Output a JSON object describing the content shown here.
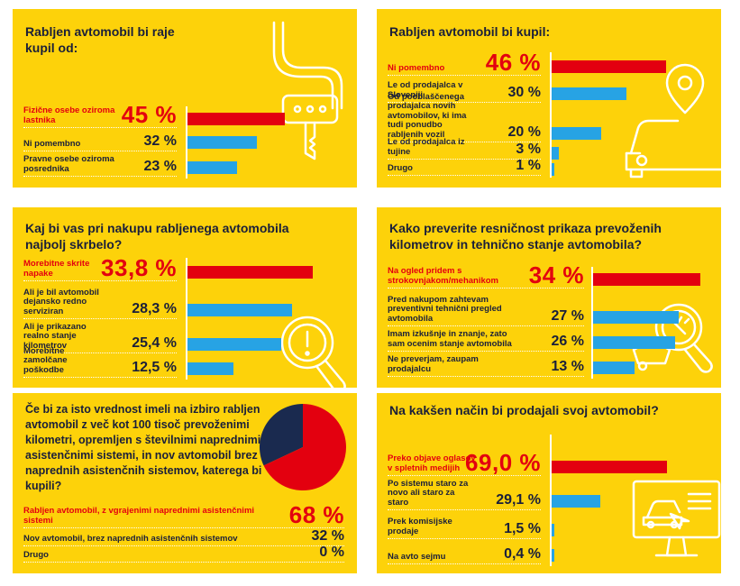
{
  "colors": {
    "red": "#e3000f",
    "blue": "#27a3e4",
    "navy": "#1a2a4f",
    "yellow": "#fdd20a",
    "text": "#1a1f3a"
  },
  "panels": [
    {
      "title": "Rabljen avtomobil bi raje kupil od:",
      "icon": "car-key-icon",
      "bars": [
        {
          "label": "Fizične osebe oziroma lastnika",
          "value": 45,
          "display": "45 %",
          "highlight": true
        },
        {
          "label": "Ni pomembno",
          "value": 32,
          "display": "32 %"
        },
        {
          "label": "Pravne osebe oziroma posrednika",
          "value": 23,
          "display": "23 %"
        }
      ]
    },
    {
      "title": "Rabljen avtomobil bi kupil:",
      "icon": "car-location-pin-icon",
      "bars": [
        {
          "label": "Ni pomembno",
          "value": 46,
          "display": "46 %",
          "highlight": true
        },
        {
          "label": "Le od prodajalca v Sloveniji",
          "value": 30,
          "display": "30 %"
        },
        {
          "label": "Od pooblaščenega prodajalca novih avtomobilov, ki ima tudi ponudbo rabljenih vozil",
          "value": 20,
          "display": "20 %"
        },
        {
          "label": "Le od prodajalca iz tujine",
          "value": 3,
          "display": "3 %"
        },
        {
          "label": "Drugo",
          "value": 1,
          "display": "1 %"
        }
      ]
    },
    {
      "title": "Kaj bi vas pri nakupu rabljenega avtomobila najbolj skrbelo?",
      "icon": "magnifier-warning-icon",
      "bars": [
        {
          "label": "Morebitne skrite napake",
          "value": 33.8,
          "display": "33,8 %",
          "highlight": true
        },
        {
          "label": "Ali je bil avtomobil dejansko redno serviziran",
          "value": 28.3,
          "display": "28,3 %"
        },
        {
          "label": "Ali je prikazano realno stanje kilometrov",
          "value": 25.4,
          "display": "25,4 %"
        },
        {
          "label": "Morebitne zamolčane poškodbe",
          "value": 12.5,
          "display": "12,5 %"
        }
      ]
    },
    {
      "title": "Kako preverite resničnost prikaza prevoženih kilometrov in tehnično stanje avtomobila?",
      "icon": "magnifier-wrench-icon",
      "bars": [
        {
          "label": "Na ogled pridem s strokovnjakom/mehanikom",
          "value": 34,
          "display": "34 %",
          "highlight": true
        },
        {
          "label": "Pred nakupom zahtevam preventivni tehnični pregled avtomobila",
          "value": 27,
          "display": "27 %"
        },
        {
          "label": "Imam izkušnje in znanje, zato sam ocenim stanje avtomobila",
          "value": 26,
          "display": "26 %"
        },
        {
          "label": "Ne preverjam, zaupam prodajalcu",
          "value": 13,
          "display": "13 %"
        }
      ]
    },
    {
      "title": "Če bi za isto vrednost imeli na izbiro rabljen avtomobil z več kot 100 tisoč prevoženimi kilometri, opremljen s številnimi naprednimi asistenčnimi sistemi, in nov avtomobil brez naprednih asistenčnih sistemov, katerega bi kupili?",
      "bars": [
        {
          "label": "Rabljen avtomobil, z vgrajenimi naprednimi asistenčnimi sistemi",
          "value": 68,
          "display": "68 %",
          "highlight": true
        },
        {
          "label": "Nov avtomobil, brez naprednih asistenčnih sistemov",
          "value": 32,
          "display": "32 %"
        },
        {
          "label": "Drugo",
          "value": 0,
          "display": "0 %"
        }
      ]
    },
    {
      "title": "Na kakšen način bi prodajali svoj avtomobil?",
      "icon": "monitor-car-icon",
      "bars": [
        {
          "label": "Preko objave oglasov v spletnih medijih",
          "value": 69.0,
          "display": "69,0 %",
          "highlight": true
        },
        {
          "label": "Po sistemu staro za novo ali staro za staro",
          "value": 29.1,
          "display": "29,1 %"
        },
        {
          "label": "Prek komisijske prodaje",
          "value": 1.5,
          "display": "1,5 %"
        },
        {
          "label": "Na avto sejmu",
          "value": 0.4,
          "display": "0,4 %"
        }
      ]
    }
  ],
  "chart_data": [
    {
      "type": "bar",
      "title": "Rabljen avtomobil bi raje kupil od:",
      "categories": [
        "Fizične osebe oziroma lastnika",
        "Ni pomembno",
        "Pravne osebe oziroma posrednika"
      ],
      "values": [
        45,
        32,
        23
      ],
      "unit": "%"
    },
    {
      "type": "bar",
      "title": "Rabljen avtomobil bi kupil:",
      "categories": [
        "Ni pomembno",
        "Le od prodajalca v Sloveniji",
        "Od pooblaščenega prodajalca novih avtomobilov, ki ima tudi ponudbo rabljenih vozil",
        "Le od prodajalca iz tujine",
        "Drugo"
      ],
      "values": [
        46,
        30,
        20,
        3,
        1
      ],
      "unit": "%"
    },
    {
      "type": "bar",
      "title": "Kaj bi vas pri nakupu rabljenega avtomobila najbolj skrbelo?",
      "categories": [
        "Morebitne skrite napake",
        "Ali je bil avtomobil dejansko redno serviziran",
        "Ali je prikazano realno stanje kilometrov",
        "Morebitne zamolčane poškodbe"
      ],
      "values": [
        33.8,
        28.3,
        25.4,
        12.5
      ],
      "unit": "%"
    },
    {
      "type": "bar",
      "title": "Kako preverite resničnost prikaza prevoženih kilometrov in tehnično stanje avtomobila?",
      "categories": [
        "Na ogled pridem s strokovnjakom/mehanikom",
        "Pred nakupom zahtevam preventivni tehnični pregled avtomobila",
        "Imam izkušnje in znanje, zato sam ocenim stanje avtomobila",
        "Ne preverjam, zaupam prodajalcu"
      ],
      "values": [
        34,
        27,
        26,
        13
      ],
      "unit": "%"
    },
    {
      "type": "pie",
      "title": "Če bi za isto vrednost imeli na izbiro rabljen avtomobil z več kot 100 tisoč prevoženimi kilometri, opremljen s številnimi naprednimi asistenčnimi sistemi, in nov avtomobil brez naprednih asistenčnih sistemov, katerega bi kupili?",
      "categories": [
        "Rabljen avtomobil, z vgrajenimi naprednimi asistenčnimi sistemi",
        "Nov avtomobil, brez naprednih asistenčnih sistemov",
        "Drugo"
      ],
      "values": [
        68,
        32,
        0
      ],
      "unit": "%"
    },
    {
      "type": "bar",
      "title": "Na kakšen način bi prodajali svoj avtomobil?",
      "categories": [
        "Preko objave oglasov v spletnih medijih",
        "Po sistemu staro za novo ali staro za staro",
        "Prek komisijske prodaje",
        "Na avto sejmu"
      ],
      "values": [
        69.0,
        29.1,
        1.5,
        0.4
      ],
      "unit": "%"
    }
  ]
}
